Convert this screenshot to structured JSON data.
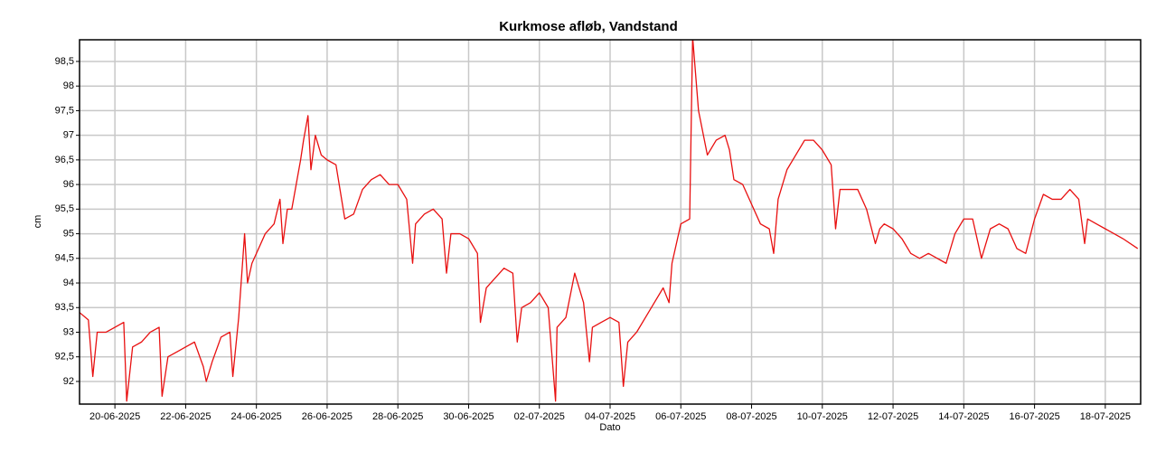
{
  "chart_data": {
    "type": "line",
    "title": "Kurkmose afløb, Vandstand",
    "x_label": "Dato",
    "y_label": "cm",
    "color": "#e81010",
    "grid": true,
    "xlim": [
      "2025-06-19T00:00",
      "2025-07-19T00:00"
    ],
    "xticks": [
      {
        "value": "2025-06-20",
        "label": "20-06-2025"
      },
      {
        "value": "2025-06-22",
        "label": "22-06-2025"
      },
      {
        "value": "2025-06-24",
        "label": "24-06-2025"
      },
      {
        "value": "2025-06-26",
        "label": "26-06-2025"
      },
      {
        "value": "2025-06-28",
        "label": "28-06-2025"
      },
      {
        "value": "2025-06-30",
        "label": "30-06-2025"
      },
      {
        "value": "2025-07-02",
        "label": "02-07-2025"
      },
      {
        "value": "2025-07-04",
        "label": "04-07-2025"
      },
      {
        "value": "2025-07-06",
        "label": "06-07-2025"
      },
      {
        "value": "2025-07-08",
        "label": "08-07-2025"
      },
      {
        "value": "2025-07-10",
        "label": "10-07-2025"
      },
      {
        "value": "2025-07-12",
        "label": "12-07-2025"
      },
      {
        "value": "2025-07-14",
        "label": "14-07-2025"
      },
      {
        "value": "2025-07-16",
        "label": "16-07-2025"
      },
      {
        "value": "2025-07-18",
        "label": "18-07-2025"
      }
    ],
    "ylim": [
      91.54,
      98.94
    ],
    "yticks": [
      92,
      {
        "value": 92.5,
        "label": "92,5"
      },
      93,
      {
        "value": 93.5,
        "label": "93,5"
      },
      94,
      {
        "value": 94.5,
        "label": "94,5"
      },
      95,
      {
        "value": 95.5,
        "label": "95,5"
      },
      96,
      {
        "value": 96.5,
        "label": "96,5"
      },
      97,
      {
        "value": 97.5,
        "label": "97,5"
      },
      98,
      {
        "value": 98.5,
        "label": "98,5"
      }
    ],
    "x": [
      "2025-06-19T00:00",
      "2025-06-19T06:00",
      "2025-06-19T09:00",
      "2025-06-19T12:00",
      "2025-06-19T18:00",
      "2025-06-20T00:00",
      "2025-06-20T06:00",
      "2025-06-20T08:00",
      "2025-06-20T12:00",
      "2025-06-20T18:00",
      "2025-06-21T00:00",
      "2025-06-21T06:00",
      "2025-06-21T08:00",
      "2025-06-21T12:00",
      "2025-06-21T18:00",
      "2025-06-22T00:00",
      "2025-06-22T06:00",
      "2025-06-22T12:00",
      "2025-06-22T14:00",
      "2025-06-22T18:00",
      "2025-06-23T00:00",
      "2025-06-23T06:00",
      "2025-06-23T08:00",
      "2025-06-23T12:00",
      "2025-06-23T16:00",
      "2025-06-23T18:00",
      "2025-06-23T21:00",
      "2025-06-24T00:00",
      "2025-06-24T06:00",
      "2025-06-24T12:00",
      "2025-06-24T16:00",
      "2025-06-24T18:00",
      "2025-06-24T21:00",
      "2025-06-25T00:00",
      "2025-06-25T06:00",
      "2025-06-25T08:00",
      "2025-06-25T11:00",
      "2025-06-25T13:00",
      "2025-06-25T16:00",
      "2025-06-25T20:00",
      "2025-06-26T00:00",
      "2025-06-26T06:00",
      "2025-06-26T12:00",
      "2025-06-26T18:00",
      "2025-06-27T00:00",
      "2025-06-27T06:00",
      "2025-06-27T12:00",
      "2025-06-27T18:00",
      "2025-06-28T00:00",
      "2025-06-28T06:00",
      "2025-06-28T10:00",
      "2025-06-28T12:00",
      "2025-06-28T18:00",
      "2025-06-29T00:00",
      "2025-06-29T06:00",
      "2025-06-29T09:00",
      "2025-06-29T12:00",
      "2025-06-29T18:00",
      "2025-06-30T00:00",
      "2025-06-30T06:00",
      "2025-06-30T08:00",
      "2025-06-30T12:00",
      "2025-06-30T18:00",
      "2025-07-01T00:00",
      "2025-07-01T06:00",
      "2025-07-01T09:00",
      "2025-07-01T12:00",
      "2025-07-01T18:00",
      "2025-07-02T00:00",
      "2025-07-02T06:00",
      "2025-07-02T11:00",
      "2025-07-02T12:00",
      "2025-07-02T18:00",
      "2025-07-03T00:00",
      "2025-07-03T06:00",
      "2025-07-03T10:00",
      "2025-07-03T12:00",
      "2025-07-03T18:00",
      "2025-07-04T00:00",
      "2025-07-04T06:00",
      "2025-07-04T09:00",
      "2025-07-04T12:00",
      "2025-07-04T18:00",
      "2025-07-05T00:00",
      "2025-07-05T06:00",
      "2025-07-05T12:00",
      "2025-07-05T16:00",
      "2025-07-05T18:00",
      "2025-07-06T00:00",
      "2025-07-06T06:00",
      "2025-07-06T08:00",
      "2025-07-06T12:00",
      "2025-07-06T18:00",
      "2025-07-07T00:00",
      "2025-07-07T06:00",
      "2025-07-07T09:00",
      "2025-07-07T12:00",
      "2025-07-07T18:00",
      "2025-07-08T00:00",
      "2025-07-08T06:00",
      "2025-07-08T12:00",
      "2025-07-08T15:00",
      "2025-07-08T18:00",
      "2025-07-09T00:00",
      "2025-07-09T06:00",
      "2025-07-09T12:00",
      "2025-07-09T18:00",
      "2025-07-10T00:00",
      "2025-07-10T06:00",
      "2025-07-10T09:00",
      "2025-07-10T12:00",
      "2025-07-10T18:00",
      "2025-07-11T00:00",
      "2025-07-11T06:00",
      "2025-07-11T12:00",
      "2025-07-11T15:00",
      "2025-07-11T18:00",
      "2025-07-12T00:00",
      "2025-07-12T06:00",
      "2025-07-12T12:00",
      "2025-07-12T18:00",
      "2025-07-13T00:00",
      "2025-07-13T06:00",
      "2025-07-13T12:00",
      "2025-07-13T18:00",
      "2025-07-14T00:00",
      "2025-07-14T06:00",
      "2025-07-14T12:00",
      "2025-07-14T18:00",
      "2025-07-15T00:00",
      "2025-07-15T06:00",
      "2025-07-15T12:00",
      "2025-07-15T18:00",
      "2025-07-16T00:00",
      "2025-07-16T06:00",
      "2025-07-16T12:00",
      "2025-07-16T18:00",
      "2025-07-17T00:00",
      "2025-07-17T06:00",
      "2025-07-17T10:00",
      "2025-07-17T12:00",
      "2025-07-17T18:00",
      "2025-07-18T00:00",
      "2025-07-18T06:00",
      "2025-07-18T12:00",
      "2025-07-18T22:00"
    ],
    "values": [
      93.4,
      93.25,
      92.1,
      93.0,
      93.0,
      93.1,
      93.2,
      91.6,
      92.7,
      92.8,
      93.0,
      93.1,
      91.7,
      92.5,
      92.6,
      92.7,
      92.8,
      92.3,
      92.0,
      92.4,
      92.9,
      93.0,
      92.1,
      93.3,
      95.0,
      94.0,
      94.4,
      94.6,
      95.0,
      95.2,
      95.7,
      94.8,
      95.5,
      95.5,
      96.5,
      96.9,
      97.4,
      96.3,
      97.0,
      96.6,
      96.5,
      96.4,
      95.3,
      95.4,
      95.9,
      96.1,
      96.2,
      96.0,
      96.0,
      95.7,
      94.4,
      95.2,
      95.4,
      95.5,
      95.3,
      94.2,
      95.0,
      95.0,
      94.9,
      94.6,
      93.2,
      93.9,
      94.1,
      94.3,
      94.2,
      92.8,
      93.5,
      93.6,
      93.8,
      93.5,
      91.6,
      93.1,
      93.3,
      94.2,
      93.6,
      92.4,
      93.1,
      93.2,
      93.3,
      93.2,
      91.9,
      92.8,
      93.0,
      93.3,
      93.6,
      93.9,
      93.6,
      94.4,
      95.2,
      95.3,
      99.0,
      97.5,
      96.6,
      96.9,
      97.0,
      96.7,
      96.1,
      96.0,
      95.6,
      95.2,
      95.1,
      94.6,
      95.7,
      96.3,
      96.6,
      96.9,
      96.9,
      96.7,
      96.4,
      95.1,
      95.9,
      95.9,
      95.9,
      95.5,
      94.8,
      95.1,
      95.2,
      95.1,
      94.9,
      94.6,
      94.5,
      94.6,
      94.5,
      94.4,
      95.0,
      95.3,
      95.3,
      94.5,
      95.1,
      95.2,
      95.1,
      94.7,
      94.6,
      95.3,
      95.8,
      95.7,
      95.7,
      95.9,
      95.7,
      94.8,
      95.3,
      95.2,
      95.1,
      95.0,
      94.9,
      94.7
    ]
  }
}
